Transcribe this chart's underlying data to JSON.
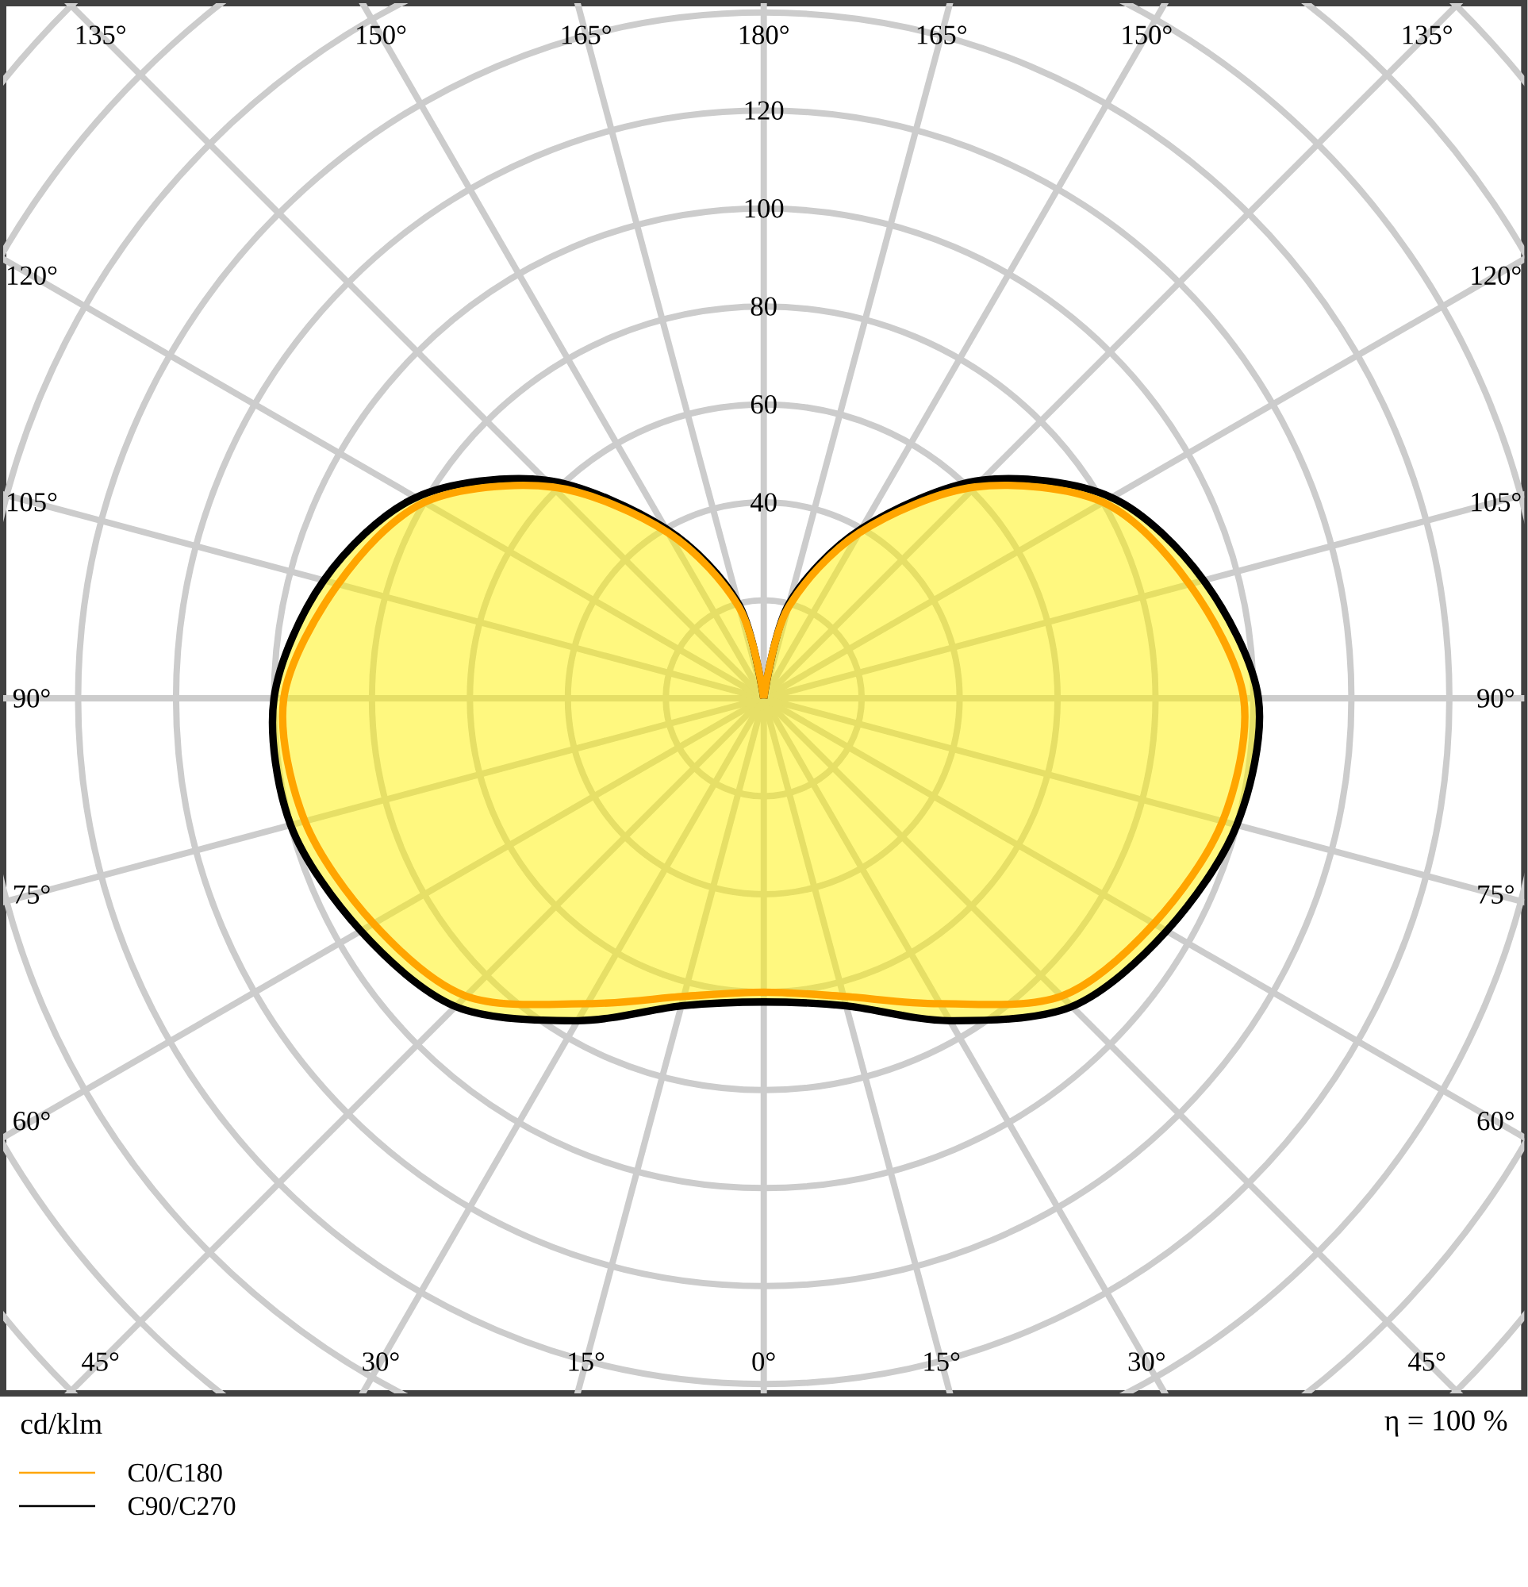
{
  "chart_data": {
    "type": "radar",
    "categories": [
      "180°",
      "165°",
      "150°",
      "135°",
      "120°",
      "105°",
      "90°",
      "75°",
      "60°",
      "45°",
      "30°",
      "15°",
      "0°",
      "15°",
      "30°",
      "45°",
      "60°",
      "75°",
      "90°",
      "105°",
      "120°",
      "135°",
      "150°",
      "165°"
    ],
    "series": [
      {
        "name": "C0/C180",
        "color": "#ffa500",
        "values": [
          0,
          19,
          39,
          61,
          80,
          90,
          98,
          97,
          92,
          86,
          72,
          63,
          60,
          63,
          72,
          86,
          92,
          97,
          98,
          90,
          80,
          61,
          39,
          19
        ]
      },
      {
        "name": "C90/C270",
        "color": "#000000",
        "values": [
          0,
          20,
          40,
          63,
          82,
          93,
          101,
          100,
          95,
          89,
          76,
          65,
          62,
          65,
          76,
          89,
          95,
          100,
          100,
          93,
          82,
          63,
          40,
          20
        ]
      }
    ],
    "ylim": [
      0,
      200
    ],
    "yticks": [
      {
        "value": 40,
        "label": "40"
      },
      {
        "value": 60,
        "label": "60"
      },
      {
        "value": 80,
        "label": "80"
      },
      {
        "value": 100,
        "label": "100"
      },
      {
        "value": 120,
        "label": "120"
      }
    ],
    "ylabel": "cd/klm",
    "annotations": [
      "η = 100 %"
    ],
    "grid": true,
    "legend": "bottom left"
  }
}
